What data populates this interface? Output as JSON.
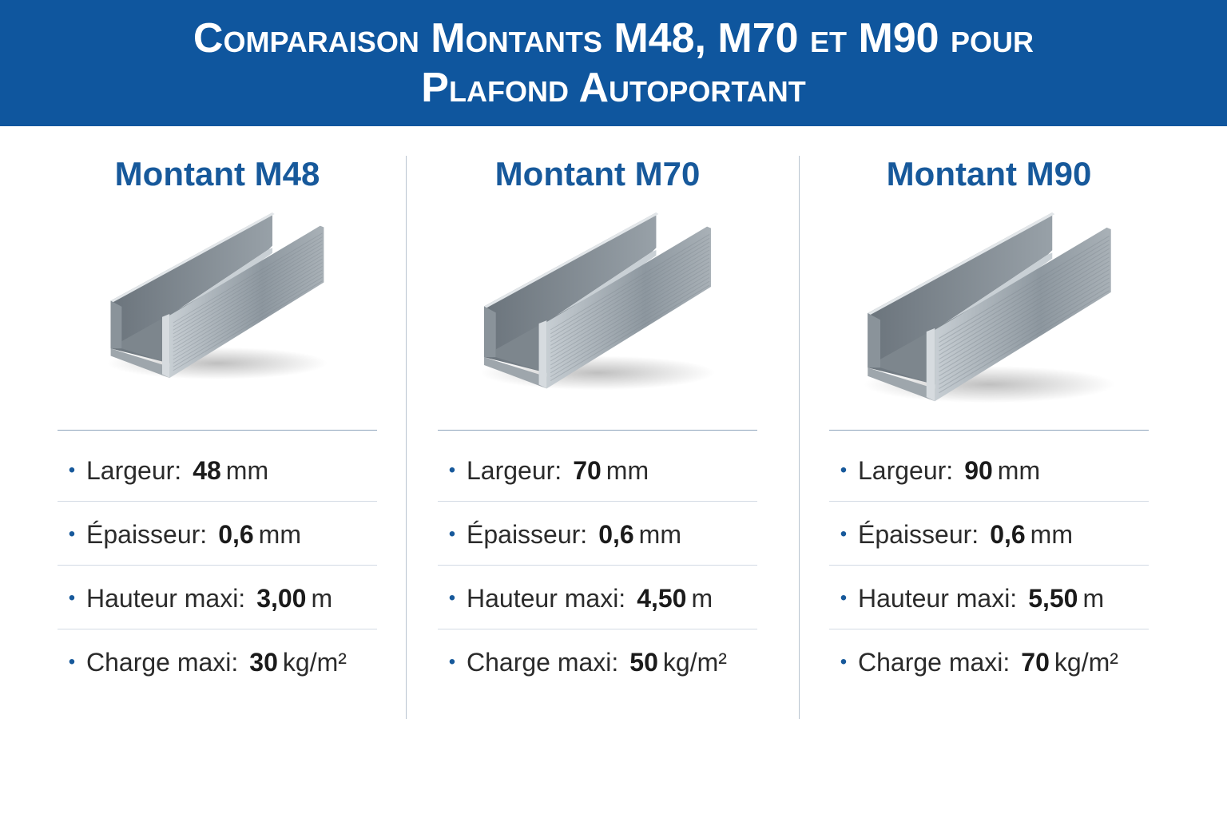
{
  "header": {
    "title": "Comparaison Montants M48, M70 et M90 pour Plafond Autoportant"
  },
  "columns": [
    {
      "title": "Montant M48",
      "specs": [
        {
          "label": "Largeur:",
          "value": "48",
          "unit": "mm"
        },
        {
          "label": "Épaisseur:",
          "value": "0,6",
          "unit": "mm"
        },
        {
          "label": "Hauteur maxi:",
          "value": "3,00",
          "unit": "m"
        },
        {
          "label": "Charge maxi:",
          "value": "30",
          "unit": "kg/m²"
        }
      ]
    },
    {
      "title": "Montant M70",
      "specs": [
        {
          "label": "Largeur:",
          "value": "70",
          "unit": "mm"
        },
        {
          "label": "Épaisseur:",
          "value": "0,6",
          "unit": "mm"
        },
        {
          "label": "Hauteur maxi:",
          "value": "4,50",
          "unit": "m"
        },
        {
          "label": "Charge maxi:",
          "value": "50",
          "unit": "kg/m²"
        }
      ]
    },
    {
      "title": "Montant M90",
      "specs": [
        {
          "label": "Largeur:",
          "value": "90",
          "unit": "mm"
        },
        {
          "label": "Épaisseur:",
          "value": "0,6",
          "unit": "mm"
        },
        {
          "label": "Hauteur maxi:",
          "value": "5,50",
          "unit": "m"
        },
        {
          "label": "Charge maxi:",
          "value": "70",
          "unit": "kg/m²"
        }
      ]
    }
  ]
}
